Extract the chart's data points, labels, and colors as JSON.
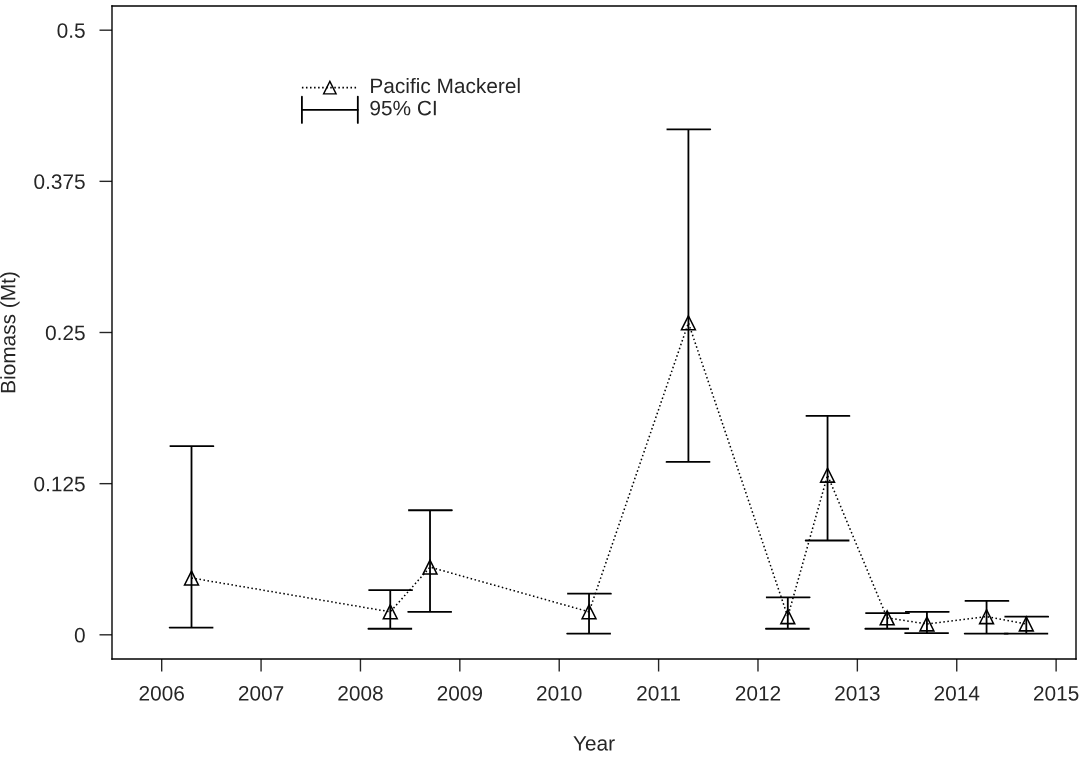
{
  "chart_data": {
    "type": "line",
    "xlabel": "Year",
    "ylabel": "Biomass (Mt)",
    "x": [
      2006.3,
      2008.3,
      2008.7,
      2010.3,
      2011.3,
      2012.3,
      2012.7,
      2013.3,
      2013.7,
      2014.3,
      2014.7
    ],
    "series": [
      {
        "name": "Pacific Mackerel",
        "color": "#000000",
        "values": [
          0.047,
          0.019,
          0.056,
          0.019,
          0.258,
          0.015,
          0.132,
          0.014,
          0.009,
          0.015,
          0.009
        ],
        "errors": [
          [
            0.006,
            0.156
          ],
          [
            0.005,
            0.037
          ],
          [
            0.019,
            0.103
          ],
          [
            0.001,
            0.034
          ],
          [
            0.143,
            0.418
          ],
          [
            0.005,
            0.031
          ],
          [
            0.078,
            0.181
          ],
          [
            0.005,
            0.018
          ],
          [
            0.0014,
            0.019
          ],
          [
            0.001,
            0.028
          ],
          [
            0.001,
            0.015
          ]
        ]
      }
    ],
    "annotations": [
      "95% CI"
    ],
    "marker": "triangle",
    "line_style": "dotted",
    "xlim": [
      2005.5,
      2015.2
    ],
    "xticks": [
      2006,
      2007,
      2008,
      2009,
      2010,
      2011,
      2012,
      2013,
      2014,
      2015
    ],
    "ylim": [
      -0.02,
      0.52
    ],
    "yticks": [
      0,
      0.125,
      0.25,
      0.375,
      0.5
    ],
    "grid": false,
    "legend": "top left"
  }
}
